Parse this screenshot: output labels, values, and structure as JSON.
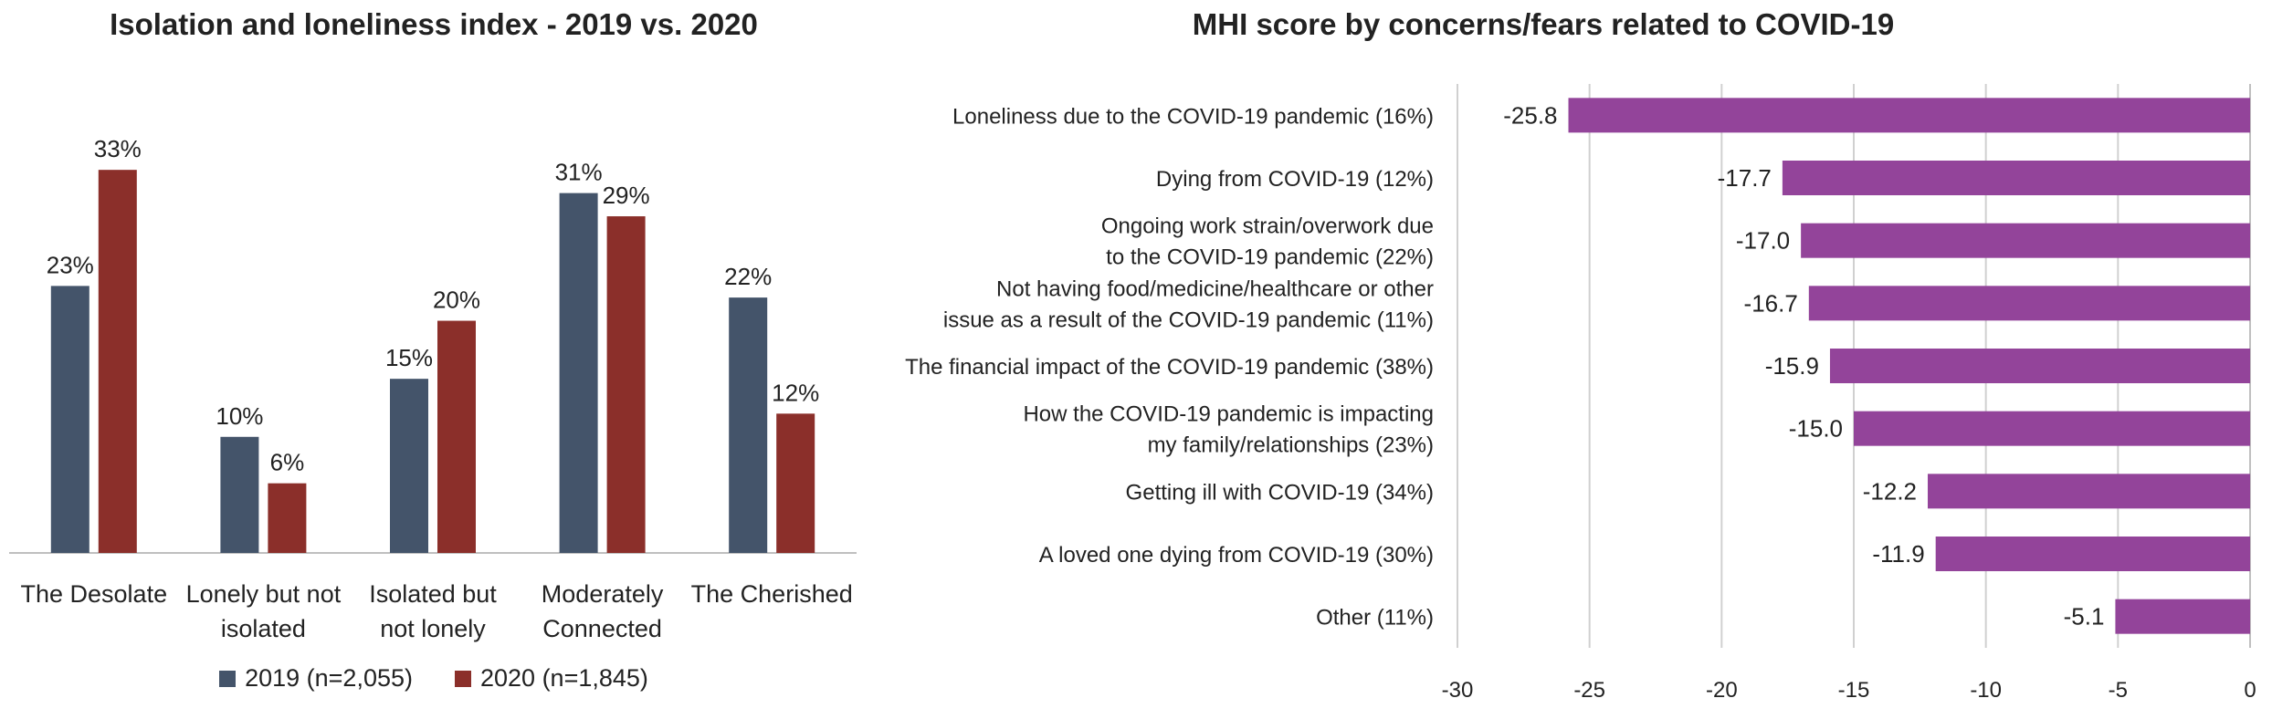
{
  "chart_data": [
    {
      "type": "bar",
      "title": "Isolation and loneliness index - 2019 vs. 2020",
      "categories": [
        [
          "The Desolate"
        ],
        [
          "Lonely but not",
          "isolated"
        ],
        [
          "Isolated but",
          "not lonely"
        ],
        [
          "Moderately",
          "Connected"
        ],
        [
          "The Cherished"
        ]
      ],
      "series": [
        {
          "name": "2019 (n=2,055)",
          "color": "#44546a",
          "values": [
            23,
            10,
            15,
            31,
            22
          ],
          "labels": [
            "23%",
            "10%",
            "15%",
            "31%",
            "22%"
          ]
        },
        {
          "name": "2020 (n=1,845)",
          "color": "#8b2f2a",
          "values": [
            33,
            6,
            20,
            29,
            12
          ],
          "labels": [
            "33%",
            "6%",
            "20%",
            "29%",
            "12%"
          ]
        }
      ],
      "ylim": [
        0,
        36
      ],
      "grid": false,
      "legend": "bottom"
    },
    {
      "type": "bar",
      "orientation": "horizontal",
      "title": "MHI score by concerns/fears related to COVID-19",
      "categories": [
        [
          "Loneliness due to the COVID-19 pandemic (16%)"
        ],
        [
          "Dying from COVID-19 (12%)"
        ],
        [
          "Ongoing work strain/overwork due",
          "to the COVID-19 pandemic (22%)"
        ],
        [
          "Not having food/medicine/healthcare or other",
          "issue as a result of the COVID-19 pandemic (11%)"
        ],
        [
          "The financial impact of the COVID-19 pandemic (38%)"
        ],
        [
          "How the COVID-19 pandemic is impacting",
          "my family/relationships (23%)"
        ],
        [
          "Getting ill with COVID-19 (34%)"
        ],
        [
          "A loved one dying from COVID-19 (30%)"
        ],
        [
          "Other (11%)"
        ]
      ],
      "series": [
        {
          "color": "#93449a",
          "values": [
            -25.8,
            -17.7,
            -17.0,
            -16.7,
            -15.9,
            -15.0,
            -12.2,
            -11.9,
            -5.1
          ],
          "labels": [
            "-25.8",
            "-17.7",
            "-17.0",
            "-16.7",
            "-15.9",
            "-15.0",
            "-12.2",
            "-11.9",
            "-5.1"
          ]
        }
      ],
      "xlim": [
        -30,
        0
      ],
      "xticks": [
        -30,
        -25,
        -20,
        -15,
        -10,
        -5,
        0
      ],
      "xtick_labels": [
        "-30",
        "-25",
        "-20",
        "-15",
        "-10",
        "-5",
        "0"
      ],
      "grid": true
    }
  ]
}
